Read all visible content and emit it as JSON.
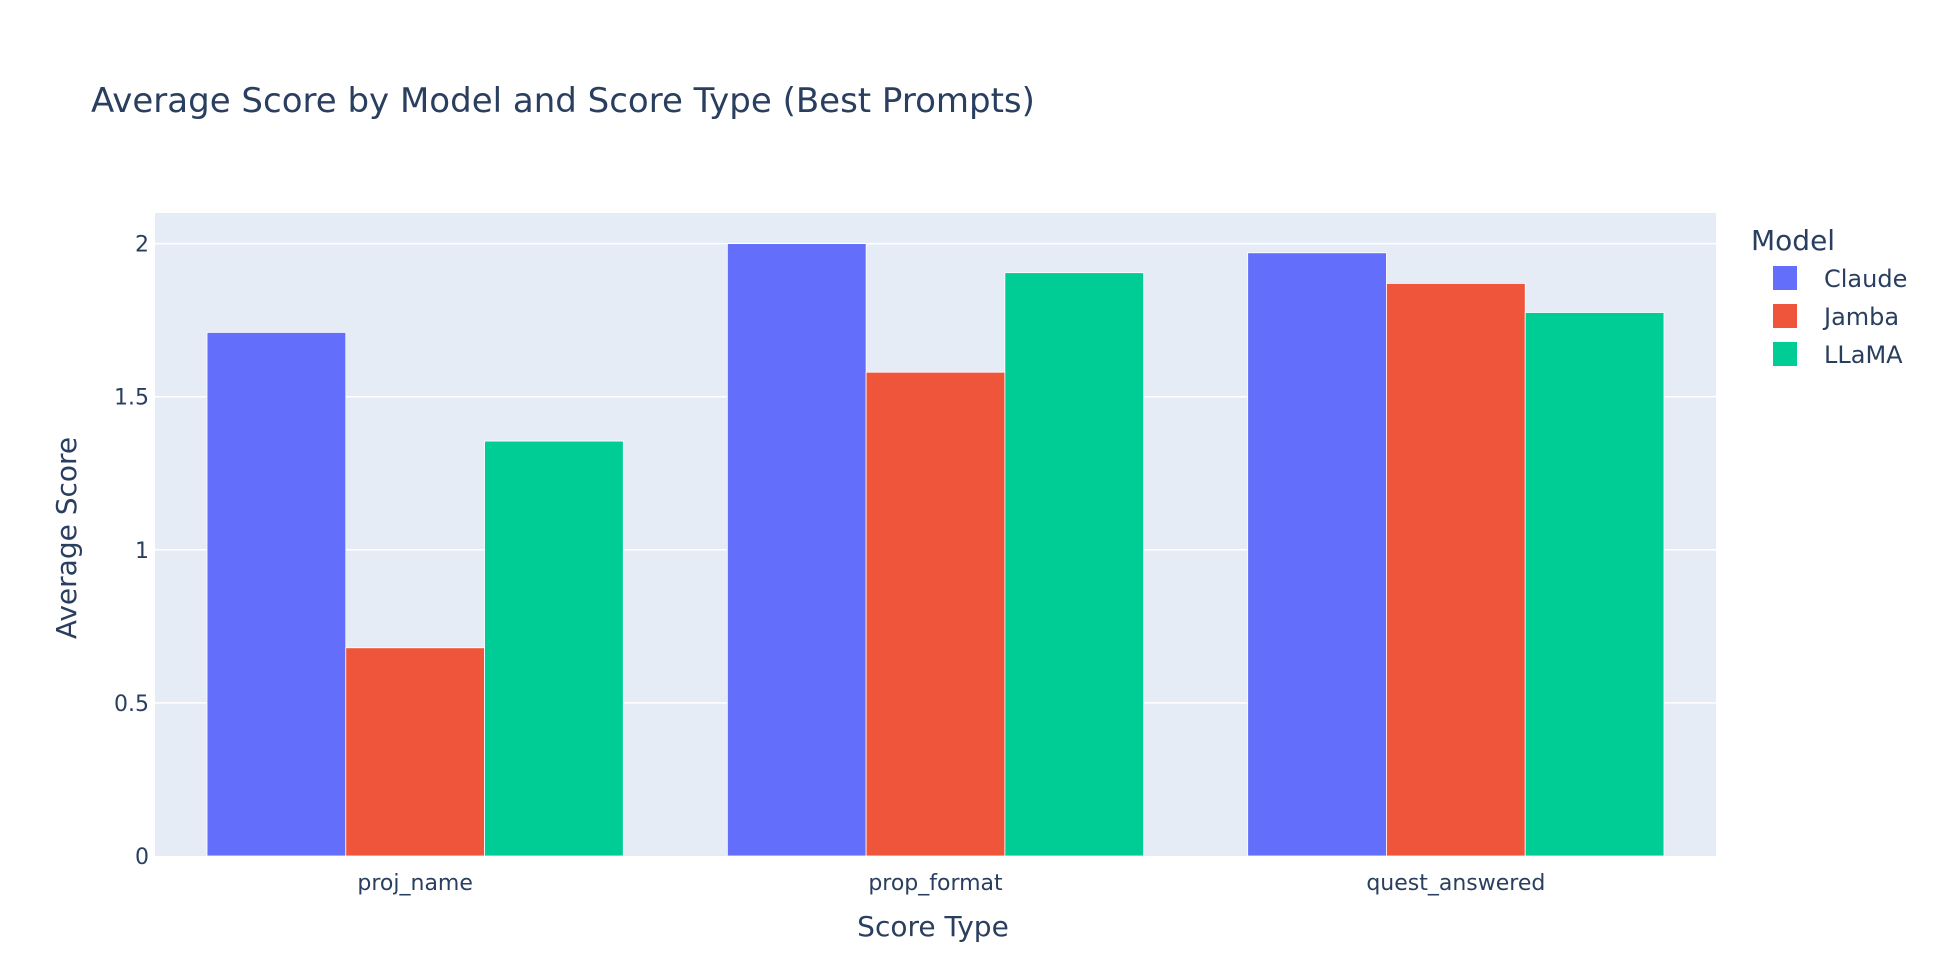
{
  "chart_data": {
    "type": "bar",
    "title": "Average Score by Model and Score Type (Best Prompts)",
    "xlabel": "Score Type",
    "ylabel": "Average Score",
    "categories": [
      "proj_name",
      "prop_format",
      "quest_answered"
    ],
    "series": [
      {
        "name": "Claude",
        "color": "#636efa",
        "values": [
          1.71,
          2.0,
          1.97
        ]
      },
      {
        "name": "Jamba",
        "color": "#ef553b",
        "values": [
          0.68,
          1.58,
          1.87
        ]
      },
      {
        "name": "LLaMA",
        "color": "#00cc96",
        "values": [
          1.355,
          1.905,
          1.775
        ]
      }
    ],
    "ylim": [
      0,
      2.1
    ],
    "yticks": [
      0,
      0.5,
      1,
      1.5,
      2
    ],
    "ytick_labels": [
      "0",
      "0.5",
      "1",
      "1.5",
      "2"
    ],
    "grid": true,
    "legend": {
      "title": "Model",
      "position": "top-right"
    },
    "colors": {
      "plot_bg": "#e5ecf6",
      "grid": "#ffffff",
      "text": "#2a3f5f"
    }
  }
}
